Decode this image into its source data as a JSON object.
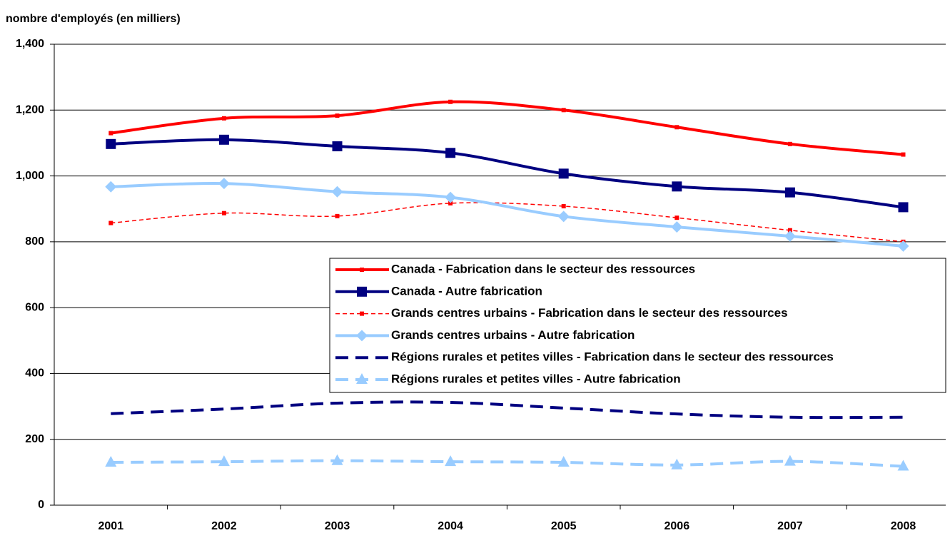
{
  "chart_data": {
    "type": "line",
    "y_axis_label": "nombre d'employés (en milliers)",
    "categories": [
      "2001",
      "2002",
      "2003",
      "2004",
      "2005",
      "2006",
      "2007",
      "2008"
    ],
    "ylim": [
      0,
      1400
    ],
    "yticks": [
      0,
      200,
      400,
      600,
      800,
      {
        "value": 1000,
        "label": "1,000"
      },
      {
        "value": 1200,
        "label": "1,200"
      },
      {
        "value": 1400,
        "label": "1,400"
      }
    ],
    "grid": true,
    "series": [
      {
        "name": "Canada - Fabrication dans le secteur des ressources",
        "color": "#ff0000",
        "line_style": "solid",
        "marker": "small-square",
        "values": [
          1130,
          1175,
          1183,
          1225,
          1200,
          1148,
          1097,
          1065
        ]
      },
      {
        "name": "Canada - Autre fabrication",
        "color": "#000080",
        "line_style": "solid",
        "marker": "square",
        "values": [
          1097,
          1110,
          1090,
          1070,
          1007,
          968,
          950,
          905
        ]
      },
      {
        "name": "Grands centres urbains - Fabrication dans le secteur des ressources",
        "color": "#ff0000",
        "line_style": "dashed",
        "marker": "small-square",
        "values": [
          857,
          887,
          878,
          917,
          908,
          873,
          835,
          800
        ]
      },
      {
        "name": "Grands centres urbains - Autre fabrication",
        "color": "#99ccff",
        "line_style": "solid",
        "marker": "diamond",
        "values": [
          967,
          977,
          952,
          935,
          877,
          845,
          817,
          787
        ]
      },
      {
        "name": "Régions rurales et petites villes - Fabrication dans le secteur des ressources",
        "color": "#000080",
        "line_style": "dashed",
        "marker": "none",
        "values": [
          278,
          292,
          310,
          312,
          295,
          277,
          267,
          267
        ]
      },
      {
        "name": "Régions rurales et petites villes - Autre fabrication",
        "color": "#99ccff",
        "line_style": "dashed",
        "marker": "triangle",
        "values": [
          130,
          132,
          135,
          132,
          130,
          122,
          133,
          118
        ]
      }
    ]
  }
}
